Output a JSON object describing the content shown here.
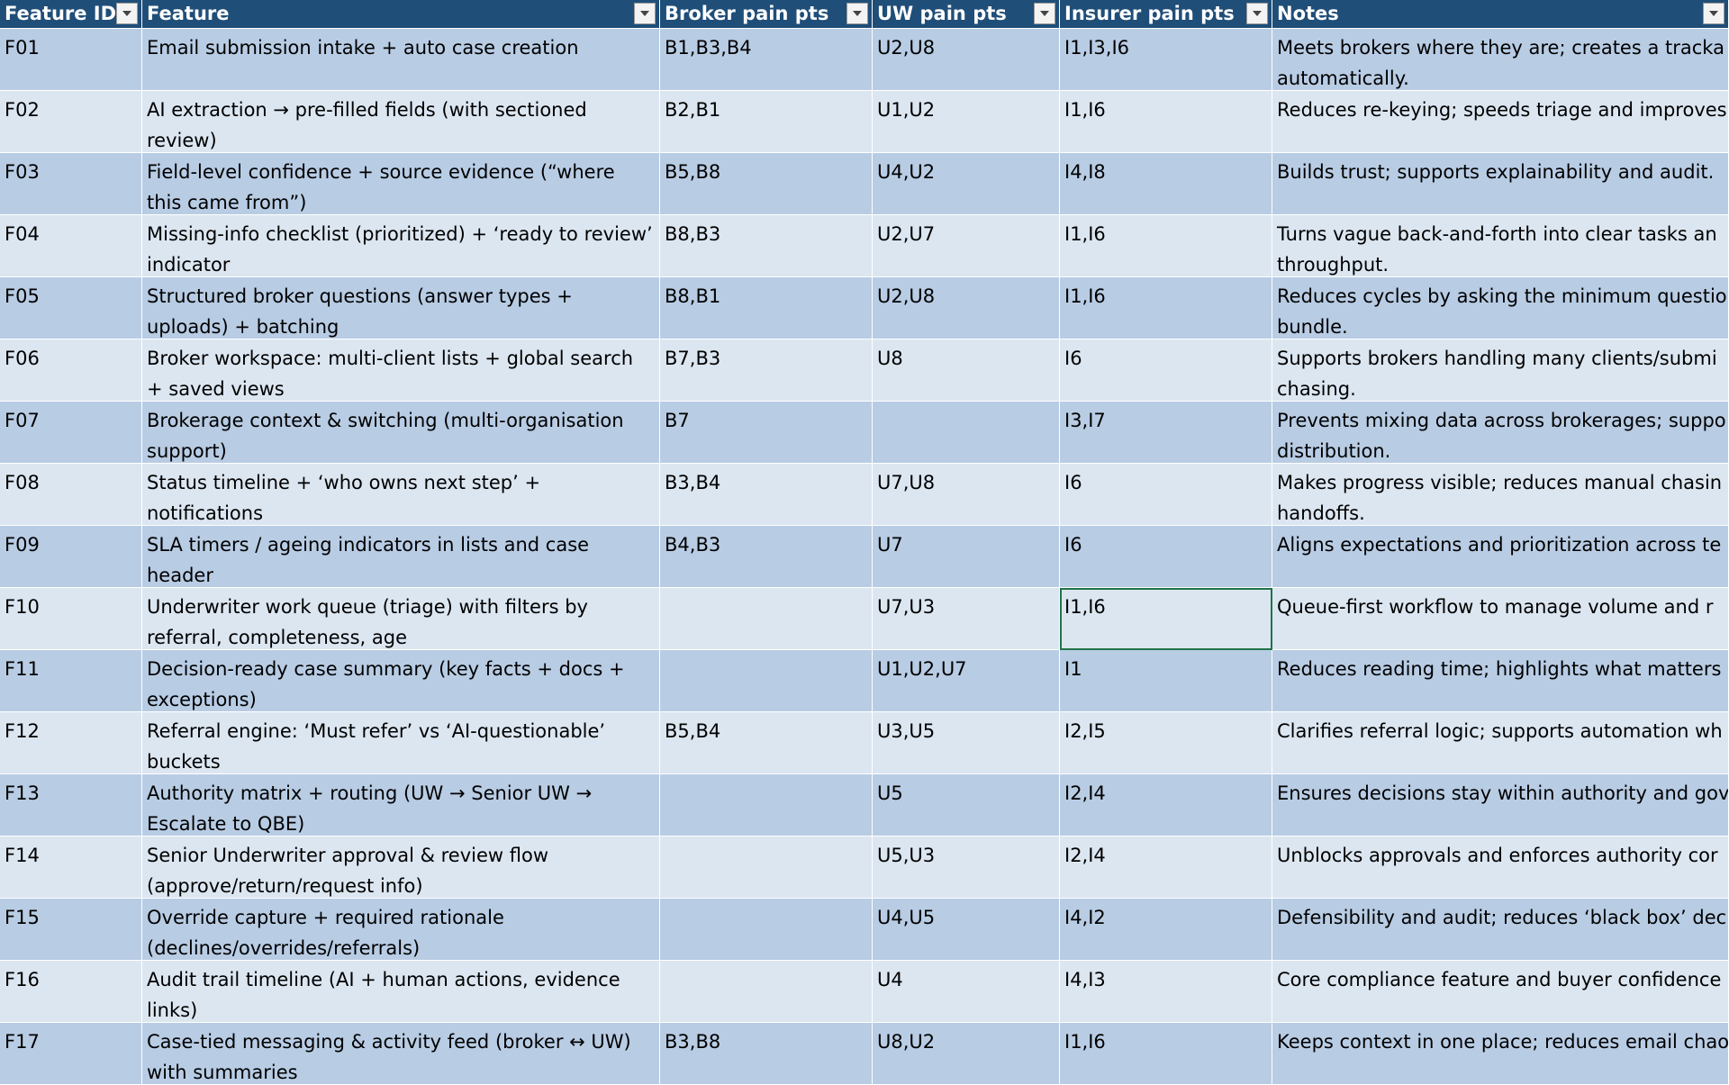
{
  "table": {
    "headers": [
      "Feature ID",
      "Feature",
      "Broker pain pts",
      "UW pain pts",
      "Insurer pain pts",
      "Notes"
    ],
    "rows": [
      [
        "F01",
        "Email submission intake + auto case creation",
        "B1,B3,B4",
        "U2,U8",
        "I1,I3,I6",
        "Meets brokers where they are; creates a tracka\nautomatically."
      ],
      [
        "F02",
        "AI extraction → pre-filled fields (with sectioned review)",
        "B2,B1",
        "U1,U2",
        "I1,I6",
        "Reduces re-keying; speeds triage and improves"
      ],
      [
        "F03",
        "Field-level confidence + source evidence (“where this came from”)",
        "B5,B8",
        "U4,U2",
        "I4,I8",
        "Builds trust; supports explainability and audit."
      ],
      [
        "F04",
        "Missing-info checklist (prioritized) + ‘ready to review’ indicator",
        "B8,B3",
        "U2,U7",
        "I1,I6",
        "Turns vague back-and-forth into clear tasks an\nthroughput."
      ],
      [
        "F05",
        "Structured broker questions (answer types + uploads) + batching",
        "B8,B1",
        "U2,U8",
        "I1,I6",
        "Reduces cycles by asking the minimum questio\nbundle."
      ],
      [
        "F06",
        "Broker workspace: multi-client lists + global search + saved views",
        "B7,B3",
        "U8",
        "I6",
        "Supports brokers handling many clients/submi\nchasing."
      ],
      [
        "F07",
        "Brokerage context & switching (multi-organisation support)",
        "B7",
        null,
        "I3,I7",
        "Prevents mixing data across brokerages; suppo\ndistribution."
      ],
      [
        "F08",
        "Status timeline + ‘who owns next step’ + notifications",
        "B3,B4",
        "U7,U8",
        "I6",
        "Makes progress visible; reduces manual chasin\nhandoffs."
      ],
      [
        "F09",
        "SLA timers / ageing indicators in lists and case header",
        "B4,B3",
        "U7",
        "I6",
        "Aligns expectations and prioritization across te"
      ],
      [
        "F10",
        "Underwriter work queue (triage) with filters by referral, completeness, age",
        null,
        "U7,U3",
        "I1,I6",
        "Queue-first workflow to manage volume and r"
      ],
      [
        "F11",
        "Decision-ready case summary (key facts + docs + exceptions)",
        null,
        "U1,U2,U7",
        "I1",
        "Reduces reading time; highlights what matters"
      ],
      [
        "F12",
        "Referral engine: ‘Must refer’ vs ‘AI-questionable’ buckets",
        "B5,B4",
        "U3,U5",
        "I2,I5",
        "Clarifies referral logic; supports automation wh"
      ],
      [
        "F13",
        "Authority matrix + routing (UW → Senior UW → Escalate to QBE)",
        null,
        "U5",
        "I2,I4",
        "Ensures decisions stay within authority and gov"
      ],
      [
        "F14",
        "Senior Underwriter approval & review flow (approve/return/request info)",
        null,
        "U5,U3",
        "I2,I4",
        "Unblocks approvals and enforces authority cor"
      ],
      [
        "F15",
        "Override capture + required rationale (declines/overrides/referrals)",
        null,
        "U4,U5",
        "I4,I2",
        "Defensibility and audit; reduces ‘black box’ dec"
      ],
      [
        "F16",
        "Audit trail timeline (AI + human actions, evidence links)",
        null,
        "U4",
        "I4,I3",
        "Core compliance feature and buyer confidence"
      ],
      [
        "F17",
        "Case-tied messaging & activity feed (broker ↔ UW) with summaries",
        "B3,B8",
        "U8,U2",
        "I1,I6",
        "Keeps context in one place; reduces email chao"
      ]
    ]
  }
}
